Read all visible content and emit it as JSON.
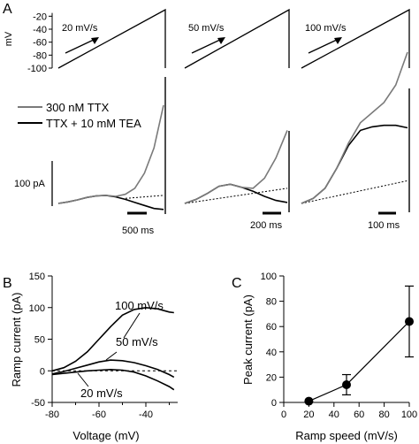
{
  "chart_data": [
    {
      "panel": "A",
      "type": "line",
      "ramp_axis": {
        "unit": "mV",
        "ticks": [
          -20,
          -40,
          -60,
          -80,
          -100
        ],
        "range": [
          -100,
          -10
        ]
      },
      "ramps": [
        {
          "label": "20 mV/s",
          "from_mV": -100,
          "to_mV": -10
        },
        {
          "label": "50 mV/s",
          "from_mV": -100,
          "to_mV": -10
        },
        {
          "label": "100 mV/s",
          "from_mV": -100,
          "to_mV": -10
        }
      ],
      "legend": [
        "300 nM TTX",
        "TTX + 10 mM TEA"
      ],
      "scale_bar_current": "100 pA",
      "time_scale_bars": [
        "500 ms",
        "200 ms",
        "100 ms"
      ],
      "series_colors": {
        "ttx": "#7a7a7a",
        "tea": "#000000"
      },
      "traces_pA": [
        {
          "ramp": "20 mV/s",
          "ttx": [
            0,
            3,
            7,
            12,
            15,
            16,
            14,
            18,
            30,
            60,
            110,
            195
          ],
          "tea": [
            0,
            3,
            7,
            12,
            15,
            16,
            13,
            8,
            2,
            -4,
            -10,
            -12
          ],
          "leak": [
            10,
            16
          ]
        },
        {
          "ramp": "50 mV/s",
          "ttx": [
            0,
            8,
            20,
            34,
            38,
            32,
            30,
            50,
            90,
            145
          ],
          "tea": [
            0,
            8,
            20,
            34,
            38,
            32,
            24,
            14,
            6,
            2
          ],
          "leak": [
            0,
            30
          ]
        },
        {
          "ramp": "100 mV/s",
          "ttx": [
            0,
            10,
            30,
            70,
            120,
            160,
            180,
            200,
            235,
            300
          ],
          "tea": [
            0,
            10,
            30,
            70,
            115,
            145,
            152,
            155,
            155,
            150
          ],
          "leak": [
            0,
            45
          ]
        }
      ]
    },
    {
      "panel": "B",
      "type": "line",
      "xlabel": "Voltage (mV)",
      "ylabel": "Ramp current (pA)",
      "xlim": [
        -80,
        -25
      ],
      "ylim": [
        -50,
        150
      ],
      "xticks": [
        -80,
        -60,
        -40
      ],
      "yticks": [
        -50,
        0,
        50,
        100,
        150
      ],
      "series": [
        {
          "name": "100 mV/s",
          "x": [
            -80,
            -75,
            -70,
            -65,
            -60,
            -55,
            -50,
            -45,
            -40,
            -35,
            -30,
            -28
          ],
          "y": [
            0,
            5,
            15,
            30,
            50,
            70,
            88,
            97,
            100,
            98,
            93,
            92
          ]
        },
        {
          "name": "50 mV/s",
          "x": [
            -80,
            -75,
            -70,
            -65,
            -60,
            -55,
            -50,
            -45,
            -40,
            -35,
            -30,
            -28
          ],
          "y": [
            -5,
            -1,
            4,
            9,
            14,
            17,
            16,
            13,
            8,
            2,
            -6,
            -10
          ]
        },
        {
          "name": "20 mV/s",
          "x": [
            -80,
            -75,
            -70,
            -65,
            -60,
            -55,
            -50,
            -45,
            -40,
            -35,
            -30,
            -28
          ],
          "y": [
            -6,
            -4,
            -2,
            0,
            1,
            2,
            1,
            -2,
            -8,
            -16,
            -25,
            -30
          ]
        }
      ]
    },
    {
      "panel": "C",
      "type": "scatter",
      "xlabel": "Ramp speed (mV/s)",
      "ylabel": "Peak current (pA)",
      "xlim": [
        0,
        100
      ],
      "ylim": [
        0,
        100
      ],
      "xticks": [
        0,
        20,
        40,
        60,
        80,
        100
      ],
      "yticks": [
        0,
        20,
        40,
        60,
        80,
        100
      ],
      "x": [
        20,
        50,
        100
      ],
      "y": [
        1,
        14,
        64
      ],
      "error": [
        1,
        8,
        28
      ]
    }
  ],
  "panel_labels": [
    "A",
    "B",
    "C"
  ]
}
